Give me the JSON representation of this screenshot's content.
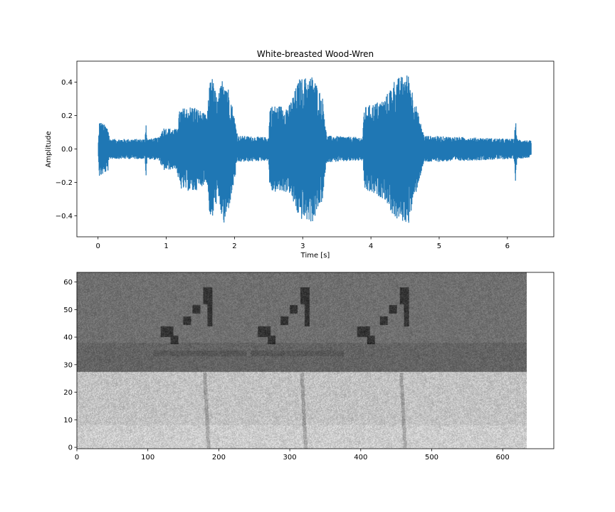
{
  "chart_data": [
    {
      "type": "line",
      "title": "White-breasted Wood-Wren",
      "xlabel": "Time [s]",
      "ylabel": "Amplitude",
      "xlim": [
        -0.31,
        6.68
      ],
      "ylim": [
        -0.525,
        0.525
      ],
      "xticks": [
        0,
        1,
        2,
        3,
        4,
        5,
        6
      ],
      "xtick_labels": [
        "0",
        "1",
        "2",
        "3",
        "4",
        "5",
        "6"
      ],
      "yticks": [
        -0.4,
        -0.2,
        0.0,
        0.2,
        0.4
      ],
      "ytick_labels": [
        "−0.4",
        "−0.2",
        "0.0",
        "0.2",
        "0.4"
      ],
      "grid": false,
      "color": "#1f77b4",
      "duration_s": 6.35,
      "envelope": [
        {
          "t": 0.0,
          "amp": 0.0
        },
        {
          "t": 0.02,
          "amp": 0.17
        },
        {
          "t": 0.15,
          "amp": 0.13
        },
        {
          "t": 0.17,
          "amp": 0.06
        },
        {
          "t": 0.69,
          "amp": 0.06
        },
        {
          "t": 0.7,
          "amp": 0.19
        },
        {
          "t": 0.72,
          "amp": 0.06
        },
        {
          "t": 0.9,
          "amp": 0.07
        },
        {
          "t": 0.95,
          "amp": 0.13
        },
        {
          "t": 1.15,
          "amp": 0.12
        },
        {
          "t": 1.2,
          "amp": 0.24
        },
        {
          "t": 1.4,
          "amp": 0.26
        },
        {
          "t": 1.6,
          "amp": 0.2
        },
        {
          "t": 1.65,
          "amp": 0.47
        },
        {
          "t": 1.75,
          "amp": 0.3
        },
        {
          "t": 1.85,
          "amp": 0.47
        },
        {
          "t": 1.95,
          "amp": 0.3
        },
        {
          "t": 2.05,
          "amp": 0.08
        },
        {
          "t": 2.5,
          "amp": 0.07
        },
        {
          "t": 2.52,
          "amp": 0.26
        },
        {
          "t": 2.8,
          "amp": 0.26
        },
        {
          "t": 2.95,
          "amp": 0.42
        },
        {
          "t": 3.15,
          "amp": 0.44
        },
        {
          "t": 3.3,
          "amp": 0.3
        },
        {
          "t": 3.35,
          "amp": 0.08
        },
        {
          "t": 3.88,
          "amp": 0.07
        },
        {
          "t": 3.9,
          "amp": 0.25
        },
        {
          "t": 4.2,
          "amp": 0.3
        },
        {
          "t": 4.35,
          "amp": 0.42
        },
        {
          "t": 4.55,
          "amp": 0.45
        },
        {
          "t": 4.7,
          "amp": 0.2
        },
        {
          "t": 4.78,
          "amp": 0.08
        },
        {
          "t": 6.1,
          "amp": 0.06
        },
        {
          "t": 6.12,
          "amp": 0.2
        },
        {
          "t": 6.14,
          "amp": 0.06
        },
        {
          "t": 6.35,
          "amp": 0.05
        }
      ]
    },
    {
      "type": "heatmap",
      "colormap": "gray",
      "xlim": [
        0,
        672
      ],
      "ylim": [
        -0.5,
        63.5
      ],
      "image_columns": 634,
      "image_rows": 64,
      "xticks": [
        0,
        100,
        200,
        300,
        400,
        500,
        600
      ],
      "xtick_labels": [
        "0",
        "100",
        "200",
        "300",
        "400",
        "500",
        "600"
      ],
      "yticks": [
        0,
        10,
        20,
        30,
        40,
        50,
        60
      ],
      "ytick_labels": [
        "0",
        "10",
        "20",
        "30",
        "40",
        "50",
        "60"
      ],
      "band_split_row": 28,
      "syllable_onsets": [
        118,
        255,
        395
      ]
    }
  ]
}
